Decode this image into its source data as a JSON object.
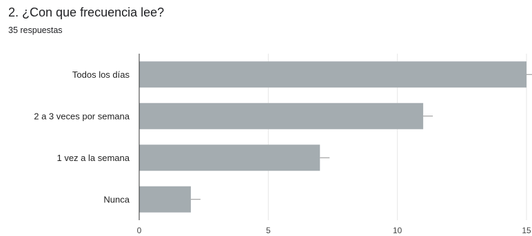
{
  "header": {
    "title": "2. ¿Con que frecuencia lee?",
    "subtitle": "35 respuestas"
  },
  "chart_data": {
    "type": "bar",
    "orientation": "horizontal",
    "title": "2. ¿Con que frecuencia lee?",
    "subtitle": "35 respuestas",
    "categories": [
      "Todos los días",
      "2 a 3 veces por semana",
      "1 vez a la semana",
      "Nunca"
    ],
    "values": [
      15,
      11,
      7,
      2
    ],
    "xlim": [
      0,
      15
    ],
    "x_ticks": [
      "0",
      "5",
      "10",
      "15"
    ],
    "grid": true,
    "bar_color": "#a4acb0",
    "grid_color": "#e6e6e6",
    "axis_color": "#333333"
  }
}
